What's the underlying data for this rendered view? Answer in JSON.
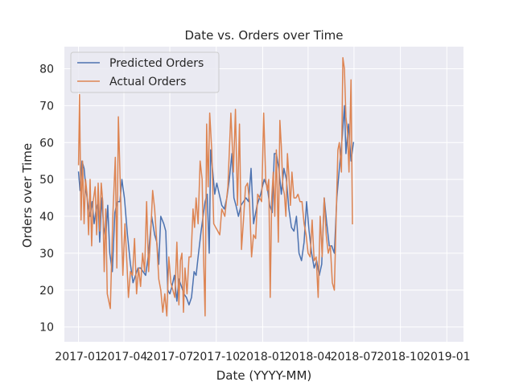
{
  "chart_data": {
    "type": "line",
    "title": "Date vs. Orders over Time",
    "xlabel": "Date (YYYY-MM)",
    "ylabel": "Orders over Time",
    "xlim": [
      "2016-12-04",
      "2019-02-03"
    ],
    "ylim": [
      6,
      86
    ],
    "x_ticks": [
      "2017-01",
      "2017-04",
      "2017-07",
      "2017-10",
      "2018-01",
      "2018-04",
      "2018-07",
      "2018-10",
      "2019-01"
    ],
    "y_ticks": [
      10,
      20,
      30,
      40,
      50,
      60,
      70,
      80
    ],
    "grid": true,
    "legend": "upper-left",
    "colors": {
      "background": "#eaeaf2",
      "grid": "#ffffff",
      "predicted": "#4c72b0",
      "actual": "#dd8452"
    },
    "series": [
      {
        "name": "Predicted Orders",
        "points": [
          [
            "2017-01-01",
            52
          ],
          [
            "2017-01-04",
            47
          ],
          [
            "2017-01-08",
            55
          ],
          [
            "2017-01-12",
            53
          ],
          [
            "2017-01-16",
            47
          ],
          [
            "2017-01-20",
            43
          ],
          [
            "2017-01-24",
            40
          ],
          [
            "2017-01-28",
            44
          ],
          [
            "2017-02-01",
            38
          ],
          [
            "2017-02-05",
            42
          ],
          [
            "2017-02-09",
            44
          ],
          [
            "2017-02-12",
            33
          ],
          [
            "2017-02-16",
            45
          ],
          [
            "2017-02-20",
            37
          ],
          [
            "2017-02-24",
            34
          ],
          [
            "2017-02-28",
            43
          ],
          [
            "2017-03-04",
            30
          ],
          [
            "2017-03-09",
            25
          ],
          [
            "2017-03-14",
            41
          ],
          [
            "2017-03-19",
            44
          ],
          [
            "2017-03-24",
            44
          ],
          [
            "2017-03-28",
            50
          ],
          [
            "2017-04-02",
            45
          ],
          [
            "2017-04-08",
            35
          ],
          [
            "2017-04-14",
            27
          ],
          [
            "2017-04-19",
            22
          ],
          [
            "2017-04-24",
            24
          ],
          [
            "2017-04-29",
            26
          ],
          [
            "2017-05-04",
            26
          ],
          [
            "2017-05-09",
            25
          ],
          [
            "2017-05-14",
            24
          ],
          [
            "2017-05-20",
            30
          ],
          [
            "2017-05-26",
            40
          ],
          [
            "2017-06-01",
            35
          ],
          [
            "2017-06-05",
            33
          ],
          [
            "2017-06-09",
            27
          ],
          [
            "2017-06-13",
            40
          ],
          [
            "2017-06-19",
            38
          ],
          [
            "2017-06-23",
            36
          ],
          [
            "2017-06-27",
            20
          ],
          [
            "2017-07-01",
            19
          ],
          [
            "2017-07-05",
            21
          ],
          [
            "2017-07-10",
            24
          ],
          [
            "2017-07-15",
            17
          ],
          [
            "2017-07-19",
            23
          ],
          [
            "2017-07-24",
            21
          ],
          [
            "2017-07-29",
            19
          ],
          [
            "2017-08-03",
            18
          ],
          [
            "2017-08-08",
            16
          ],
          [
            "2017-08-13",
            18
          ],
          [
            "2017-08-18",
            25
          ],
          [
            "2017-08-22",
            24
          ],
          [
            "2017-08-26",
            29
          ],
          [
            "2017-09-01",
            36
          ],
          [
            "2017-09-05",
            40
          ],
          [
            "2017-09-09",
            44
          ],
          [
            "2017-09-13",
            46
          ],
          [
            "2017-09-17",
            30
          ],
          [
            "2017-09-20",
            58
          ],
          [
            "2017-09-24",
            52
          ],
          [
            "2017-09-28",
            46
          ],
          [
            "2017-10-02",
            49
          ],
          [
            "2017-10-07",
            46
          ],
          [
            "2017-10-12",
            43
          ],
          [
            "2017-10-17",
            42
          ],
          [
            "2017-10-22",
            45
          ],
          [
            "2017-10-27",
            50
          ],
          [
            "2017-11-01",
            57
          ],
          [
            "2017-11-05",
            45
          ],
          [
            "2017-11-09",
            43
          ],
          [
            "2017-11-14",
            40
          ],
          [
            "2017-11-19",
            43
          ],
          [
            "2017-11-24",
            44
          ],
          [
            "2017-11-29",
            45
          ],
          [
            "2017-12-04",
            44
          ],
          [
            "2017-12-09",
            53
          ],
          [
            "2017-12-14",
            38
          ],
          [
            "2017-12-21",
            43
          ],
          [
            "2017-12-28",
            46
          ],
          [
            "2018-01-04",
            50
          ],
          [
            "2018-01-10",
            48
          ],
          [
            "2018-01-15",
            43
          ],
          [
            "2018-01-20",
            41
          ],
          [
            "2018-01-24",
            57
          ],
          [
            "2018-01-28",
            57
          ],
          [
            "2018-02-02",
            53
          ],
          [
            "2018-02-07",
            46
          ],
          [
            "2018-02-12",
            53
          ],
          [
            "2018-02-17",
            50
          ],
          [
            "2018-02-22",
            42
          ],
          [
            "2018-02-27",
            37
          ],
          [
            "2018-03-04",
            36
          ],
          [
            "2018-03-09",
            40
          ],
          [
            "2018-03-14",
            30
          ],
          [
            "2018-03-19",
            28
          ],
          [
            "2018-03-24",
            33
          ],
          [
            "2018-03-29",
            44
          ],
          [
            "2018-04-03",
            36
          ],
          [
            "2018-04-08",
            30
          ],
          [
            "2018-04-13",
            26
          ],
          [
            "2018-04-18",
            28
          ],
          [
            "2018-04-23",
            24
          ],
          [
            "2018-04-28",
            27
          ],
          [
            "2018-05-03",
            45
          ],
          [
            "2018-05-08",
            38
          ],
          [
            "2018-05-13",
            32
          ],
          [
            "2018-05-18",
            32
          ],
          [
            "2018-05-23",
            30
          ],
          [
            "2018-05-28",
            45
          ],
          [
            "2018-06-02",
            53
          ],
          [
            "2018-06-08",
            62
          ],
          [
            "2018-06-12",
            70
          ],
          [
            "2018-06-15",
            57
          ],
          [
            "2018-06-20",
            65
          ],
          [
            "2018-06-25",
            55
          ],
          [
            "2018-06-30",
            60
          ]
        ]
      },
      {
        "name": "Actual Orders",
        "points": [
          [
            "2017-01-01",
            54
          ],
          [
            "2017-01-03",
            73
          ],
          [
            "2017-01-06",
            39
          ],
          [
            "2017-01-09",
            55
          ],
          [
            "2017-01-12",
            38
          ],
          [
            "2017-01-15",
            50
          ],
          [
            "2017-01-18",
            46
          ],
          [
            "2017-01-21",
            35
          ],
          [
            "2017-01-24",
            50
          ],
          [
            "2017-01-27",
            32
          ],
          [
            "2017-01-30",
            44
          ],
          [
            "2017-02-03",
            48
          ],
          [
            "2017-02-06",
            35
          ],
          [
            "2017-02-09",
            49
          ],
          [
            "2017-02-12",
            36
          ],
          [
            "2017-02-15",
            49
          ],
          [
            "2017-02-18",
            44
          ],
          [
            "2017-02-21",
            25
          ],
          [
            "2017-02-24",
            42
          ],
          [
            "2017-02-27",
            19
          ],
          [
            "2017-03-02",
            17
          ],
          [
            "2017-03-05",
            15
          ],
          [
            "2017-03-10",
            40
          ],
          [
            "2017-03-15",
            56
          ],
          [
            "2017-03-18",
            26
          ],
          [
            "2017-03-21",
            67
          ],
          [
            "2017-03-26",
            43
          ],
          [
            "2017-03-30",
            24
          ],
          [
            "2017-04-03",
            38
          ],
          [
            "2017-04-07",
            27
          ],
          [
            "2017-04-10",
            18
          ],
          [
            "2017-04-14",
            25
          ],
          [
            "2017-04-18",
            24
          ],
          [
            "2017-04-22",
            34
          ],
          [
            "2017-04-26",
            19
          ],
          [
            "2017-04-30",
            26
          ],
          [
            "2017-05-04",
            21
          ],
          [
            "2017-05-08",
            30
          ],
          [
            "2017-05-12",
            25
          ],
          [
            "2017-05-16",
            44
          ],
          [
            "2017-05-20",
            25
          ],
          [
            "2017-05-24",
            35
          ],
          [
            "2017-05-28",
            47
          ],
          [
            "2017-06-01",
            42
          ],
          [
            "2017-06-05",
            33
          ],
          [
            "2017-06-09",
            23
          ],
          [
            "2017-06-13",
            20
          ],
          [
            "2017-06-17",
            14
          ],
          [
            "2017-06-21",
            19
          ],
          [
            "2017-06-25",
            13
          ],
          [
            "2017-06-29",
            29
          ],
          [
            "2017-07-03",
            22
          ],
          [
            "2017-07-07",
            20
          ],
          [
            "2017-07-11",
            18
          ],
          [
            "2017-07-15",
            33
          ],
          [
            "2017-07-19",
            16
          ],
          [
            "2017-07-22",
            28
          ],
          [
            "2017-07-25",
            30
          ],
          [
            "2017-07-28",
            14
          ],
          [
            "2017-07-31",
            26
          ],
          [
            "2017-08-04",
            19
          ],
          [
            "2017-08-08",
            29
          ],
          [
            "2017-08-12",
            29
          ],
          [
            "2017-08-16",
            42
          ],
          [
            "2017-08-19",
            37
          ],
          [
            "2017-08-22",
            45
          ],
          [
            "2017-08-26",
            38
          ],
          [
            "2017-08-30",
            55
          ],
          [
            "2017-09-03",
            50
          ],
          [
            "2017-09-06",
            28
          ],
          [
            "2017-09-09",
            13
          ],
          [
            "2017-09-12",
            65
          ],
          [
            "2017-09-15",
            48
          ],
          [
            "2017-09-18",
            68
          ],
          [
            "2017-09-22",
            58
          ],
          [
            "2017-09-26",
            38
          ],
          [
            "2017-09-30",
            37
          ],
          [
            "2017-10-04",
            36
          ],
          [
            "2017-10-08",
            35
          ],
          [
            "2017-10-12",
            42
          ],
          [
            "2017-10-18",
            40
          ],
          [
            "2017-10-24",
            48
          ],
          [
            "2017-10-30",
            68
          ],
          [
            "2017-11-04",
            52
          ],
          [
            "2017-11-08",
            69
          ],
          [
            "2017-11-12",
            43
          ],
          [
            "2017-11-16",
            65
          ],
          [
            "2017-11-20",
            31
          ],
          [
            "2017-11-24",
            39
          ],
          [
            "2017-11-28",
            48
          ],
          [
            "2017-12-02",
            49
          ],
          [
            "2017-12-06",
            44
          ],
          [
            "2017-12-10",
            29
          ],
          [
            "2017-12-14",
            35
          ],
          [
            "2017-12-18",
            34
          ],
          [
            "2017-12-22",
            46
          ],
          [
            "2017-12-26",
            45
          ],
          [
            "2017-12-30",
            44
          ],
          [
            "2018-01-03",
            68
          ],
          [
            "2018-01-07",
            50
          ],
          [
            "2018-01-10",
            47
          ],
          [
            "2018-01-13",
            50
          ],
          [
            "2018-01-16",
            18
          ],
          [
            "2018-01-19",
            45
          ],
          [
            "2018-01-22",
            52
          ],
          [
            "2018-01-25",
            40
          ],
          [
            "2018-01-28",
            58
          ],
          [
            "2018-02-01",
            33
          ],
          [
            "2018-02-04",
            66
          ],
          [
            "2018-02-07",
            59
          ],
          [
            "2018-02-10",
            48
          ],
          [
            "2018-02-13",
            46
          ],
          [
            "2018-02-16",
            40
          ],
          [
            "2018-02-19",
            57
          ],
          [
            "2018-02-22",
            51
          ],
          [
            "2018-02-25",
            43
          ],
          [
            "2018-02-28",
            52
          ],
          [
            "2018-03-04",
            45
          ],
          [
            "2018-03-08",
            45
          ],
          [
            "2018-03-12",
            46
          ],
          [
            "2018-03-16",
            44
          ],
          [
            "2018-03-20",
            44
          ],
          [
            "2018-03-24",
            38
          ],
          [
            "2018-03-28",
            35
          ],
          [
            "2018-04-01",
            30
          ],
          [
            "2018-04-05",
            29
          ],
          [
            "2018-04-09",
            39
          ],
          [
            "2018-04-13",
            28
          ],
          [
            "2018-04-17",
            29
          ],
          [
            "2018-04-21",
            18
          ],
          [
            "2018-04-25",
            40
          ],
          [
            "2018-04-29",
            29
          ],
          [
            "2018-05-03",
            45
          ],
          [
            "2018-05-07",
            35
          ],
          [
            "2018-05-11",
            30
          ],
          [
            "2018-05-15",
            32
          ],
          [
            "2018-05-19",
            22
          ],
          [
            "2018-05-23",
            20
          ],
          [
            "2018-05-27",
            42
          ],
          [
            "2018-05-30",
            58
          ],
          [
            "2018-06-02",
            60
          ],
          [
            "2018-06-06",
            52
          ],
          [
            "2018-06-09",
            83
          ],
          [
            "2018-06-12",
            80
          ],
          [
            "2018-06-15",
            67
          ],
          [
            "2018-06-18",
            63
          ],
          [
            "2018-06-21",
            52
          ],
          [
            "2018-06-25",
            77
          ],
          [
            "2018-06-28",
            38
          ]
        ]
      }
    ]
  }
}
